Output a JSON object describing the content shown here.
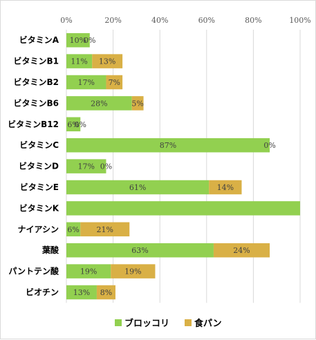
{
  "chart_data": {
    "type": "bar",
    "orientation": "horizontal",
    "stacked": true,
    "categories": [
      "ビタミンA",
      "ビタミンB1",
      "ビタミンB2",
      "ビタミンB6",
      "ビタミンB12",
      "ビタミンC",
      "ビタミンD",
      "ビタミンE",
      "ビタミンK",
      "ナイアシン",
      "葉酸",
      "パントテン酸",
      "ビオチン"
    ],
    "series": [
      {
        "name": "ブロッコリ",
        "color": "#92d050",
        "values": [
          10,
          11,
          17,
          28,
          6,
          87,
          17,
          61,
          100,
          6,
          63,
          19,
          13
        ],
        "labels": [
          "10%",
          "11%",
          "17%",
          "28%",
          "6%",
          "87%",
          "17%",
          "61%",
          "",
          "6%",
          "63%",
          "19%",
          "13%"
        ]
      },
      {
        "name": "食パン",
        "color": "#d9b046",
        "values": [
          0,
          13,
          7,
          5,
          0,
          0,
          0,
          14,
          0,
          21,
          24,
          19,
          8
        ],
        "labels": [
          "0%",
          "13%",
          "7%",
          "5%",
          "0%",
          "0%",
          "0%",
          "14%",
          "",
          "21%",
          "24%",
          "19%",
          "8%"
        ]
      }
    ],
    "xlim": [
      0,
      100
    ],
    "xticks": [
      "0%",
      "20%",
      "40%",
      "60%",
      "80%",
      "100%"
    ],
    "grid": true,
    "legend_position": "bottom"
  }
}
